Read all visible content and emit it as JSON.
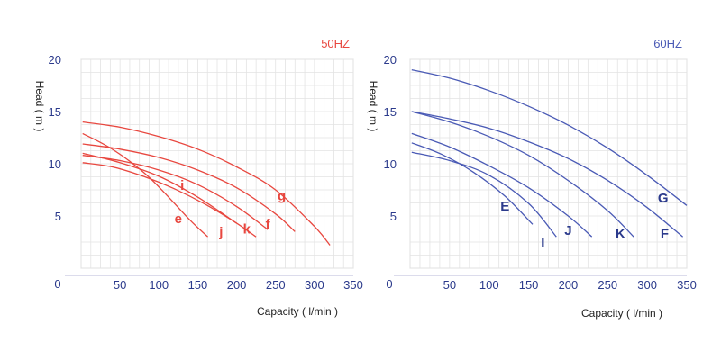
{
  "chart_data": [
    {
      "type": "line",
      "title": "50HZ",
      "xlabel": "Capacity ( l/min )",
      "ylabel": "Head ( m )",
      "xlim": [
        0,
        350
      ],
      "ylim": [
        0,
        20
      ],
      "xticks": [
        "0",
        "50",
        "100",
        "150",
        "200",
        "250",
        "300",
        "350"
      ],
      "yticks": [
        "5",
        "10",
        "15",
        "20"
      ],
      "grid": true,
      "color": "#e8473f",
      "series": [
        {
          "name": "e",
          "x": [
            0,
            40,
            80,
            110,
            140,
            163
          ],
          "y": [
            12.9,
            11.4,
            9.2,
            7.0,
            4.6,
            3.0
          ]
        },
        {
          "name": "i",
          "x": [
            0,
            50,
            100,
            150,
            200
          ],
          "y": [
            11.0,
            10.1,
            8.8,
            6.8,
            4.3
          ]
        },
        {
          "name": "j",
          "x": [
            0,
            40,
            80,
            120,
            160,
            200,
            225
          ],
          "y": [
            10.1,
            9.7,
            8.8,
            7.6,
            6.1,
            4.3,
            3.0
          ]
        },
        {
          "name": "k",
          "x": [
            0,
            50,
            100,
            150,
            200,
            240
          ],
          "y": [
            10.8,
            10.3,
            9.4,
            8.0,
            5.9,
            3.7
          ]
        },
        {
          "name": "f",
          "x": [
            0,
            50,
            100,
            150,
            200,
            250,
            275
          ],
          "y": [
            11.9,
            11.4,
            10.6,
            9.4,
            7.7,
            5.2,
            3.5
          ]
        },
        {
          "name": "g",
          "x": [
            0,
            50,
            100,
            150,
            200,
            250,
            300,
            320
          ],
          "y": [
            14.0,
            13.5,
            12.6,
            11.4,
            9.7,
            7.5,
            4.0,
            2.2
          ]
        }
      ],
      "label_points": [
        {
          "name": "e",
          "x": 125,
          "y": 4.3
        },
        {
          "name": "i",
          "x": 130,
          "y": 7.5
        },
        {
          "name": "j",
          "x": 180,
          "y": 3.0
        },
        {
          "name": "k",
          "x": 213,
          "y": 3.3
        },
        {
          "name": "f",
          "x": 240,
          "y": 3.8
        },
        {
          "name": "g",
          "x": 258,
          "y": 6.5
        }
      ]
    },
    {
      "type": "line",
      "title": "60HZ",
      "xlabel": "Capacity ( l/min )",
      "ylabel": "Head ( m )",
      "xlim": [
        0,
        350
      ],
      "ylim": [
        0,
        20
      ],
      "xticks": [
        "0",
        "50",
        "100",
        "150",
        "200",
        "250",
        "300",
        "350"
      ],
      "yticks": [
        "5",
        "10",
        "15",
        "20"
      ],
      "grid": true,
      "color": "#4a5ab5",
      "series": [
        {
          "name": "E",
          "x": [
            0,
            40,
            80,
            120,
            155
          ],
          "y": [
            12.0,
            10.9,
            9.2,
            6.9,
            4.2
          ]
        },
        {
          "name": "I",
          "x": [
            0,
            50,
            100,
            150,
            185
          ],
          "y": [
            11.1,
            10.3,
            8.9,
            6.2,
            3.0
          ]
        },
        {
          "name": "J",
          "x": [
            0,
            50,
            100,
            150,
            200,
            230
          ],
          "y": [
            12.9,
            11.6,
            9.8,
            7.7,
            5.0,
            3.0
          ]
        },
        {
          "name": "K",
          "x": [
            0,
            50,
            100,
            150,
            200,
            250,
            283
          ],
          "y": [
            15.0,
            14.0,
            12.6,
            10.8,
            8.4,
            5.5,
            3.0
          ]
        },
        {
          "name": "F",
          "x": [
            0,
            50,
            100,
            150,
            200,
            250,
            300,
            345
          ],
          "y": [
            15.0,
            14.3,
            13.4,
            12.1,
            10.5,
            8.4,
            5.8,
            3.0
          ]
        },
        {
          "name": "G",
          "x": [
            0,
            50,
            100,
            150,
            200,
            250,
            300,
            350
          ],
          "y": [
            19.0,
            18.2,
            17.0,
            15.5,
            13.7,
            11.5,
            8.9,
            6.0
          ]
        }
      ],
      "label_points": [
        {
          "name": "E",
          "x": 120,
          "y": 5.5
        },
        {
          "name": "I",
          "x": 168,
          "y": 2.0
        },
        {
          "name": "J",
          "x": 200,
          "y": 3.2
        },
        {
          "name": "K",
          "x": 266,
          "y": 2.9
        },
        {
          "name": "F",
          "x": 322,
          "y": 2.9
        },
        {
          "name": "G",
          "x": 320,
          "y": 6.3
        }
      ]
    }
  ]
}
